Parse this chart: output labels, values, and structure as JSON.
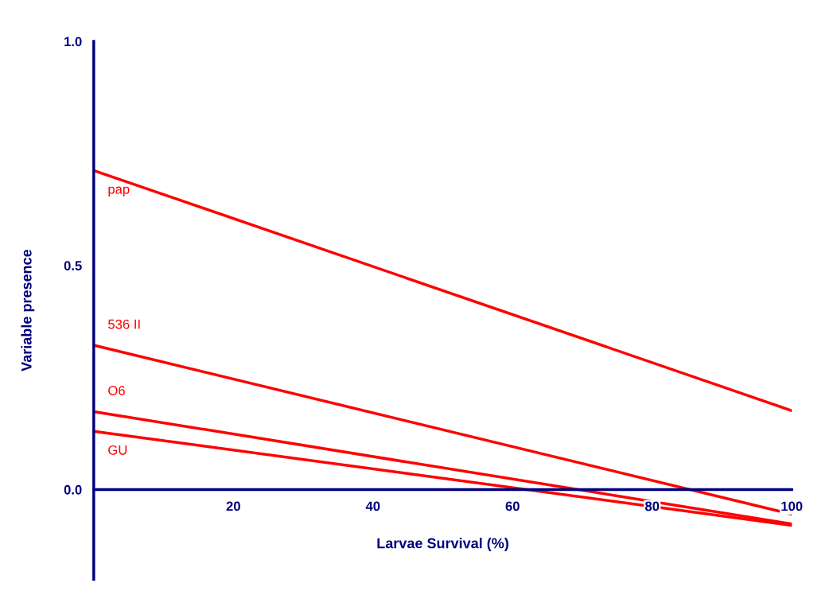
{
  "chart_data": {
    "type": "line",
    "xlabel": "Larvae Survival (%)",
    "ylabel": "Variable presence",
    "x": [
      0,
      100
    ],
    "series": [
      {
        "name": "pap",
        "color": "#ff0000",
        "values": [
          0.712,
          0.176
        ]
      },
      {
        "name": "536 II",
        "color": "#ff0000",
        "values": [
          0.322,
          -0.055
        ]
      },
      {
        "name": "O6",
        "color": "#ff0000",
        "values": [
          0.174,
          -0.077
        ]
      },
      {
        "name": "GU",
        "color": "#ff0000",
        "values": [
          0.13,
          -0.08
        ]
      }
    ],
    "xlim": [
      0,
      100
    ],
    "ylim": [
      -0.2,
      1.0
    ],
    "xticks": [
      20,
      40,
      60,
      80,
      100
    ],
    "yticks": [
      {
        "value": 0,
        "label": "0.0"
      },
      0.5,
      {
        "value": 1,
        "label": "1.0"
      }
    ],
    "grid": false,
    "legend": false,
    "marker": "none",
    "line_style": "solid"
  }
}
